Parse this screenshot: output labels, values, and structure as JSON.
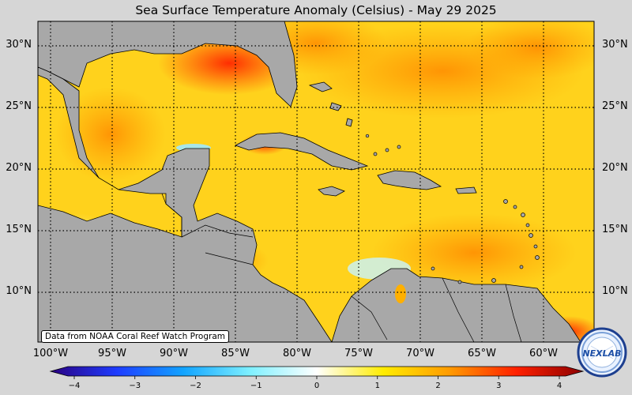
{
  "title": "Sea Surface Temperature Anomaly (Celsius) - May 29 2025",
  "credit": "Data from NOAA Coral Reef Watch Program",
  "logo_text": "NEXLAB",
  "map": {
    "lat_labels": [
      "30°N",
      "25°N",
      "20°N",
      "15°N",
      "10°N"
    ],
    "lon_labels": [
      "100°W",
      "95°W",
      "90°W",
      "85°W",
      "80°W",
      "75°W",
      "70°W",
      "65°W",
      "60°W"
    ],
    "ocean_color": "#ffd21c",
    "land_color": "#a8a8a8",
    "grid_style": "dotted"
  },
  "colorbar": {
    "ticks": [
      "−4",
      "−3",
      "−2",
      "−1",
      "0",
      "1",
      "2",
      "3",
      "4"
    ],
    "range": [
      -4,
      4
    ],
    "colors": [
      "#2a0080",
      "#1e3cff",
      "#12a4ff",
      "#7ff0ff",
      "#ffffff",
      "#ffec00",
      "#ff9a00",
      "#ff2000",
      "#8c0000"
    ]
  }
}
